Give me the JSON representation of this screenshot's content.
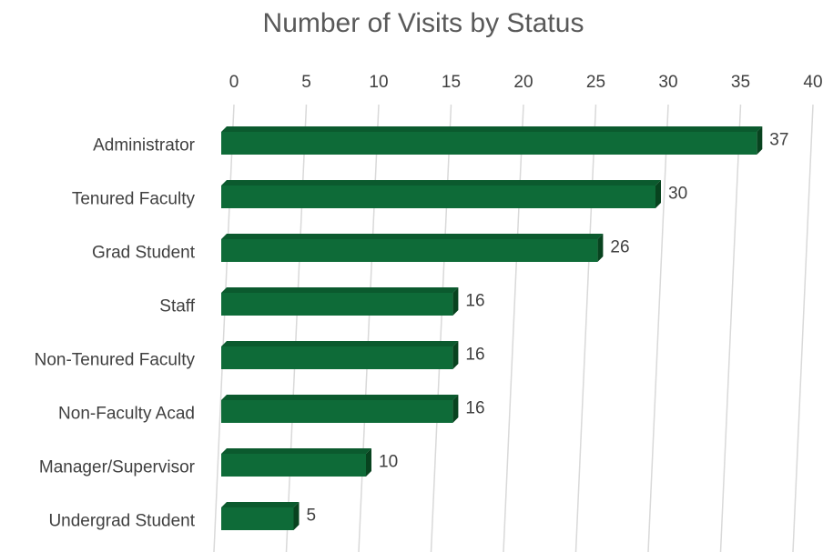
{
  "chart_data": {
    "type": "bar",
    "orientation": "horizontal",
    "title": "Number of Visits by Status",
    "categories": [
      "Administrator",
      "Tenured Faculty",
      "Grad Student",
      "Staff",
      "Non-Tenured Faculty",
      "Non-Faculty Acad",
      "Manager/Supervisor",
      "Undergrad Student"
    ],
    "values": [
      37,
      30,
      26,
      16,
      16,
      16,
      10,
      5
    ],
    "color": "#0e6b38",
    "xlim": [
      0,
      40
    ],
    "xticks": [
      0,
      5,
      10,
      15,
      20,
      25,
      30,
      35,
      40
    ],
    "grid": true
  }
}
